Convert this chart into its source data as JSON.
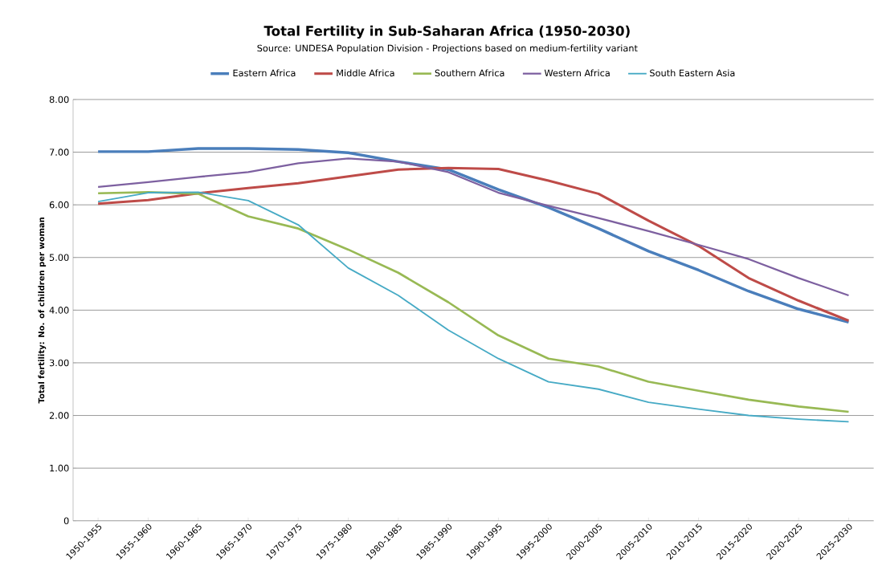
{
  "chart_data": {
    "type": "line",
    "title": "Total Fertility in Sub-Saharan Africa (1950-2030)",
    "subtitle": "Source: UNDESA Population Division - Projections based on medium-fertility variant",
    "ylabel": "Total fertility: No. of children per woman",
    "categories": [
      "1950-1955",
      "1955-1960",
      "1960-1965",
      "1965-1970",
      "1970-1975",
      "1975-1980",
      "1980-1985",
      "1985-1990",
      "1990-1995",
      "1995-2000",
      "2000-2005",
      "2005-2010",
      "2010-2015",
      "2015-2020",
      "2020-2025",
      "2025-2030"
    ],
    "series": [
      {
        "name": "Eastern Africa",
        "color": "#4a7ebb",
        "values": [
          7.01,
          7.01,
          7.07,
          7.07,
          7.05,
          6.99,
          6.82,
          6.67,
          6.29,
          5.95,
          5.55,
          5.12,
          4.76,
          4.36,
          4.02,
          3.77
        ]
      },
      {
        "name": "Middle Africa",
        "color": "#be4b48",
        "values": [
          6.02,
          6.09,
          6.22,
          6.32,
          6.41,
          6.54,
          6.67,
          6.7,
          6.68,
          6.46,
          6.21,
          5.7,
          5.22,
          4.61,
          4.18,
          3.8
        ]
      },
      {
        "name": "Southern Africa",
        "color": "#98b954",
        "values": [
          6.22,
          6.24,
          6.21,
          5.78,
          5.55,
          5.15,
          4.71,
          4.15,
          3.52,
          3.08,
          2.93,
          2.64,
          2.47,
          2.3,
          2.17,
          2.07
        ]
      },
      {
        "name": "Western Africa",
        "color": "#7d60a0",
        "values": [
          6.34,
          6.43,
          6.53,
          6.62,
          6.79,
          6.88,
          6.82,
          6.62,
          6.23,
          5.98,
          5.75,
          5.5,
          5.24,
          4.97,
          4.61,
          4.28
        ]
      },
      {
        "name": "South Eastern Asia",
        "color": "#46aac5",
        "values": [
          6.06,
          6.23,
          6.24,
          6.08,
          5.62,
          4.8,
          4.28,
          3.62,
          3.08,
          2.64,
          2.5,
          2.25,
          2.12,
          2.0,
          1.93,
          1.88
        ]
      }
    ],
    "ylim": [
      0,
      8
    ],
    "yticks": [
      {
        "value": 0,
        "label": "0"
      },
      {
        "value": 1,
        "label": "1.00"
      },
      {
        "value": 2,
        "label": "2.00"
      },
      {
        "value": 3,
        "label": "3.00"
      },
      {
        "value": 4,
        "label": "4.00"
      },
      {
        "value": 5,
        "label": "5.00"
      },
      {
        "value": 6,
        "label": "6.00"
      },
      {
        "value": 7,
        "label": "7.00"
      },
      {
        "value": 8,
        "label": "8.00"
      }
    ],
    "grid": "y",
    "legend": "top",
    "marker": "none",
    "line_style": "solid"
  }
}
